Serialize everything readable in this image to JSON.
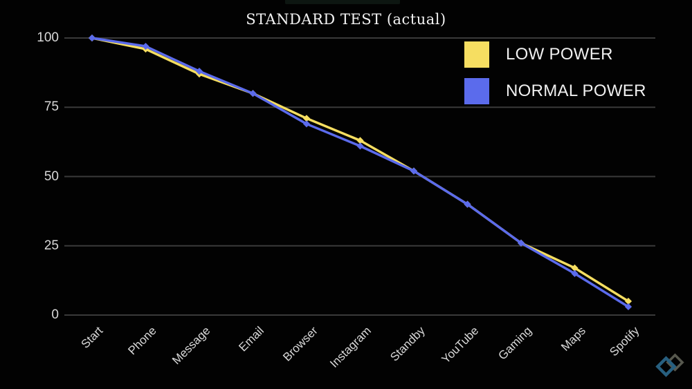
{
  "title": "STANDARD TEST (actual)",
  "legend": {
    "items": [
      {
        "label": "LOW POWER",
        "color": "#f6de61"
      },
      {
        "label": "NORMAL POWER",
        "color": "#5b6bec"
      }
    ]
  },
  "colors": {
    "background": "#020202",
    "gridline": "#3a3a3a",
    "axis_text": "#d9d9d9",
    "title_text": "#f2f2f2",
    "low_power": "#f6de61",
    "normal_power": "#5b6bec",
    "watermark_blue": "#2e7095",
    "watermark_gray": "#66685c"
  },
  "chart_data": {
    "type": "line",
    "categories": [
      "Start",
      "Phone",
      "Message",
      "Email",
      "Browser",
      "Instagram",
      "Standby",
      "YouTube",
      "Gaming",
      "Maps",
      "Spotify"
    ],
    "series": [
      {
        "name": "LOW POWER",
        "color": "#f6de61",
        "values": [
          100,
          96,
          87,
          80,
          71,
          63,
          52,
          40,
          26,
          17,
          5
        ]
      },
      {
        "name": "NORMAL POWER",
        "color": "#5b6bec",
        "values": [
          100,
          97,
          88,
          80,
          69,
          61,
          52,
          40,
          26,
          15,
          3
        ]
      }
    ],
    "title": "STANDARD TEST (actual)",
    "xlabel": "",
    "ylabel": "",
    "yticks": [
      0,
      25,
      50,
      75,
      100
    ],
    "ylim": [
      0,
      100
    ],
    "grid": "horizontal",
    "legend_position": "top-right"
  }
}
